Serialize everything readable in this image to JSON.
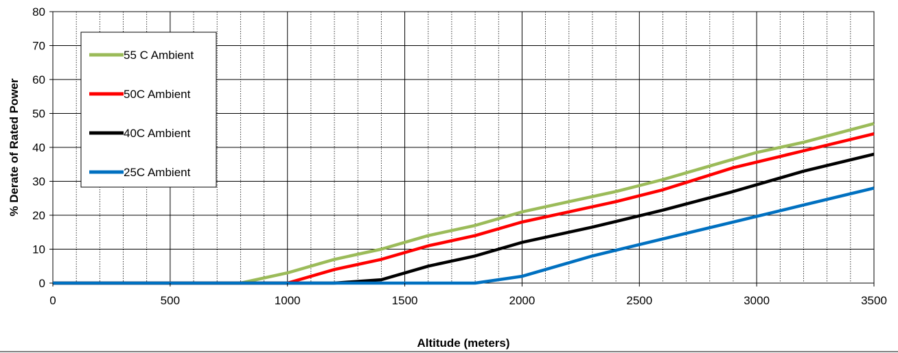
{
  "chart_data": {
    "type": "line",
    "title": "",
    "xlabel": "Altitude (meters)",
    "ylabel": "% Derate of Rated Power",
    "xlim": [
      0,
      3500
    ],
    "ylim": [
      0,
      80
    ],
    "x_ticks": [
      0,
      500,
      1000,
      1500,
      2000,
      2500,
      3000,
      3500
    ],
    "y_ticks": [
      0,
      10,
      20,
      30,
      40,
      50,
      60,
      70,
      80
    ],
    "grid": true,
    "legend_placement": "top-left",
    "series": [
      {
        "name": "55 C Ambient",
        "color": "#9bbb59",
        "points": [
          [
            0,
            0
          ],
          [
            800,
            0
          ],
          [
            1000,
            3
          ],
          [
            1200,
            7
          ],
          [
            1400,
            10
          ],
          [
            1600,
            14
          ],
          [
            1800,
            17
          ],
          [
            2000,
            21
          ],
          [
            2200,
            24
          ],
          [
            2400,
            27
          ],
          [
            2600,
            30.5
          ],
          [
            2800,
            34.5
          ],
          [
            3000,
            38.5
          ],
          [
            3200,
            41.5
          ],
          [
            3500,
            47
          ]
        ]
      },
      {
        "name": "50C Ambient",
        "color": "#ff0000",
        "points": [
          [
            0,
            0
          ],
          [
            1000,
            0
          ],
          [
            1200,
            4
          ],
          [
            1400,
            7
          ],
          [
            1600,
            11
          ],
          [
            1800,
            14
          ],
          [
            2000,
            18
          ],
          [
            2200,
            21
          ],
          [
            2400,
            24
          ],
          [
            2600,
            27.5
          ],
          [
            2900,
            34
          ],
          [
            3200,
            39
          ],
          [
            3500,
            44
          ]
        ]
      },
      {
        "name": "40C Ambient",
        "color": "#000000",
        "points": [
          [
            0,
            0
          ],
          [
            1200,
            0
          ],
          [
            1400,
            1
          ],
          [
            1600,
            5
          ],
          [
            1800,
            8
          ],
          [
            2000,
            12
          ],
          [
            2300,
            16.5
          ],
          [
            2600,
            21.5
          ],
          [
            2900,
            27
          ],
          [
            3200,
            33
          ],
          [
            3500,
            38
          ]
        ]
      },
      {
        "name": "25C Ambient",
        "color": "#0070c0",
        "points": [
          [
            0,
            0
          ],
          [
            1800,
            0
          ],
          [
            2000,
            2
          ],
          [
            2300,
            8
          ],
          [
            2600,
            13
          ],
          [
            2900,
            18
          ],
          [
            3200,
            23
          ],
          [
            3500,
            28
          ]
        ]
      }
    ]
  }
}
